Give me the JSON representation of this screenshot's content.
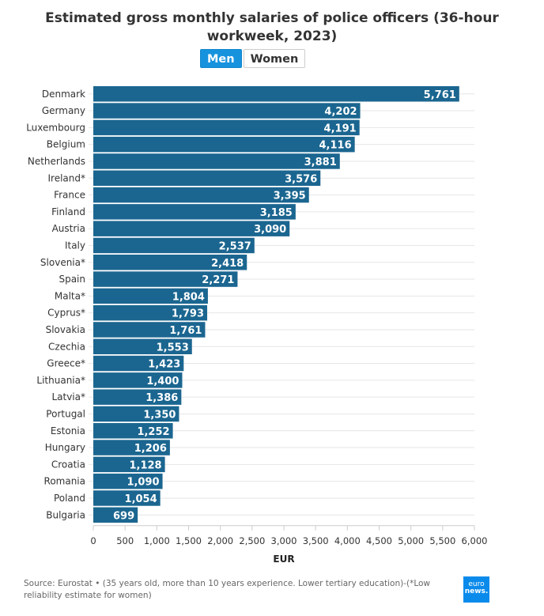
{
  "chart_data": {
    "type": "bar",
    "title": "Estimated gross monthly salaries of police officers (36-hour workweek, 2023)",
    "toggle": {
      "options": [
        "Men",
        "Women"
      ],
      "selected": "Men"
    },
    "categories": [
      "Denmark",
      "Germany",
      "Luxembourg",
      "Belgium",
      "Netherlands",
      "Ireland*",
      "France",
      "Finland",
      "Austria",
      "Italy",
      "Slovenia*",
      "Spain",
      "Malta*",
      "Cyprus*",
      "Slovakia",
      "Czechia",
      "Greece*",
      "Lithuania*",
      "Latvia*",
      "Portugal",
      "Estonia",
      "Hungary",
      "Croatia",
      "Romania",
      "Poland",
      "Bulgaria"
    ],
    "values": [
      5761,
      4202,
      4191,
      4116,
      3881,
      3576,
      3395,
      3185,
      3090,
      2537,
      2418,
      2271,
      1804,
      1793,
      1761,
      1553,
      1423,
      1400,
      1386,
      1350,
      1252,
      1206,
      1128,
      1090,
      1054,
      699
    ],
    "xlabel": "EUR",
    "xlim": [
      0,
      6000
    ],
    "xticks": [
      0,
      500,
      1000,
      1500,
      2000,
      2500,
      3000,
      3500,
      4000,
      4500,
      5000,
      5500,
      6000
    ],
    "grid": true,
    "bar_color": "#1b6690",
    "source": "Source: Eurostat • (35 years old, more than 10 years experience. Lower tertiary education)-(*Low reliability estimate for women)"
  },
  "logo": {
    "line1": "euro",
    "line2": "news."
  }
}
